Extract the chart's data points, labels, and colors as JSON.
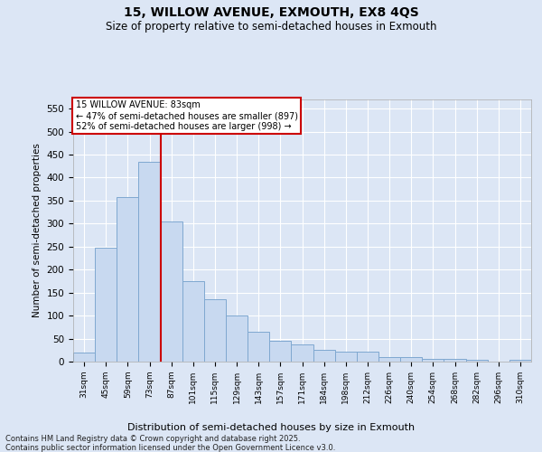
{
  "title1": "15, WILLOW AVENUE, EXMOUTH, EX8 4QS",
  "title2": "Size of property relative to semi-detached houses in Exmouth",
  "xlabel": "Distribution of semi-detached houses by size in Exmouth",
  "ylabel": "Number of semi-detached properties",
  "bins": [
    "31sqm",
    "45sqm",
    "59sqm",
    "73sqm",
    "87sqm",
    "101sqm",
    "115sqm",
    "129sqm",
    "143sqm",
    "157sqm",
    "171sqm",
    "184sqm",
    "198sqm",
    "212sqm",
    "226sqm",
    "240sqm",
    "254sqm",
    "268sqm",
    "282sqm",
    "296sqm",
    "310sqm"
  ],
  "values": [
    20,
    248,
    358,
    435,
    305,
    175,
    135,
    100,
    65,
    45,
    38,
    25,
    22,
    22,
    10,
    10,
    5,
    5,
    3,
    0,
    3
  ],
  "bar_color": "#c8d9f0",
  "bar_edge_color": "#7fa8d0",
  "vline_color": "#cc0000",
  "annotation_label": "15 WILLOW AVENUE: 83sqm",
  "annotation_line1": "← 47% of semi-detached houses are smaller (897)",
  "annotation_line2": "52% of semi-detached houses are larger (998) →",
  "ylim": [
    0,
    570
  ],
  "yticks": [
    0,
    50,
    100,
    150,
    200,
    250,
    300,
    350,
    400,
    450,
    500,
    550
  ],
  "footnote1": "Contains HM Land Registry data © Crown copyright and database right 2025.",
  "footnote2": "Contains public sector information licensed under the Open Government Licence v3.0.",
  "fig_bg_color": "#dce6f5",
  "plot_bg_color": "#dce6f5",
  "grid_color": "#ffffff",
  "vline_pos": 3.5
}
